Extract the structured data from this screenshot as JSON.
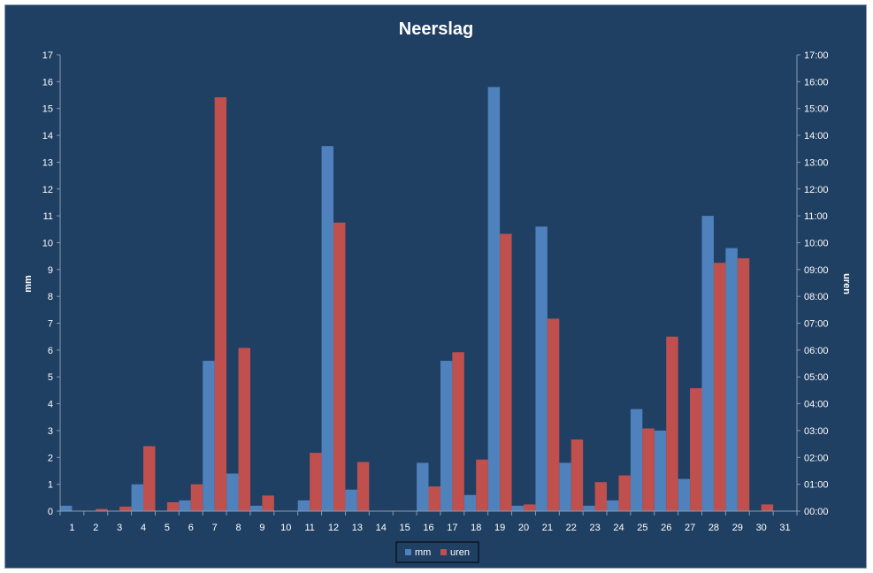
{
  "chart_data": {
    "type": "bar",
    "title": "Neerslag",
    "ylabel": "mm",
    "y2label": "uren",
    "categories": [
      "1",
      "2",
      "3",
      "4",
      "5",
      "6",
      "7",
      "8",
      "9",
      "10",
      "11",
      "12",
      "13",
      "14",
      "15",
      "16",
      "17",
      "18",
      "19",
      "20",
      "21",
      "22",
      "23",
      "24",
      "25",
      "26",
      "27",
      "28",
      "29",
      "30",
      "31"
    ],
    "ylim": [
      0,
      17
    ],
    "y_ticks": [
      "0",
      "1",
      "2",
      "3",
      "4",
      "5",
      "6",
      "7",
      "8",
      "9",
      "10",
      "11",
      "12",
      "13",
      "14",
      "15",
      "16",
      "17"
    ],
    "y2_ticks": [
      "00:00",
      "01:00",
      "02:00",
      "03:00",
      "04:00",
      "05:00",
      "06:00",
      "07:00",
      "08:00",
      "09:00",
      "10:00",
      "11:00",
      "12:00",
      "13:00",
      "14:00",
      "15:00",
      "16:00",
      "17:00"
    ],
    "series": [
      {
        "name": "mm",
        "color": "#4f81bd",
        "values": [
          0.2,
          0,
          0,
          1.0,
          0,
          0.4,
          5.6,
          1.4,
          0.2,
          0,
          0.4,
          13.6,
          0.8,
          0,
          0,
          1.8,
          5.6,
          0.6,
          15.8,
          0.2,
          10.6,
          1.8,
          0.2,
          0.4,
          3.8,
          3.0,
          1.2,
          11.0,
          9.8,
          0,
          0
        ]
      },
      {
        "name": "uren",
        "color": "#c0504d",
        "values": [
          0,
          0.08,
          0.17,
          2.42,
          0.33,
          1.0,
          15.42,
          6.08,
          0.58,
          0,
          2.17,
          10.75,
          1.83,
          0,
          0,
          0.92,
          5.92,
          1.92,
          10.33,
          0.25,
          7.17,
          2.67,
          1.08,
          1.33,
          3.08,
          6.5,
          4.58,
          9.25,
          9.42,
          0.25,
          0
        ]
      }
    ],
    "grid": false,
    "legend_position": "bottom"
  }
}
